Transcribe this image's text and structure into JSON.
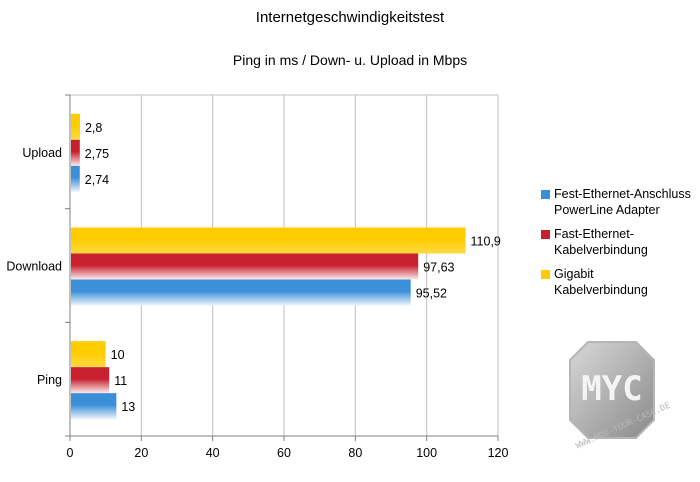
{
  "chart_data": {
    "type": "bar",
    "orientation": "horizontal",
    "title": "Internetgeschwindigkeitstest",
    "subtitle": "Ping in ms / Down- u. Upload in Mbps",
    "categories": [
      "Upload",
      "Download",
      "Ping"
    ],
    "series": [
      {
        "name": "Fest-Ethernet-Anschluss PowerLine Adapter",
        "color": "#3a8fd8",
        "values": [
          2.74,
          95.52,
          13
        ],
        "labels": [
          "2,74",
          "95,52",
          "13"
        ]
      },
      {
        "name": "Fast-Ethernet-Kabelverbindung",
        "color": "#c8202e",
        "values": [
          2.75,
          97.63,
          11
        ],
        "labels": [
          "2,75",
          "97,63",
          "11"
        ]
      },
      {
        "name": "Gigabit Kabelverbindung",
        "color": "#ffcc00",
        "values": [
          2.8,
          110.9,
          10
        ],
        "labels": [
          "2,8",
          "110,9",
          "10"
        ]
      }
    ],
    "xlim": [
      0,
      120
    ],
    "xticks": [
      "0",
      "20",
      "40",
      "60",
      "80",
      "100",
      "120"
    ],
    "grid": true,
    "legend_position": "right"
  },
  "legend": [
    [
      "Fest-Ethernet-Anschluss",
      "PowerLine Adapter"
    ],
    [
      "Fast-Ethernet-",
      "Kabelverbindung"
    ],
    [
      "Gigabit",
      "Kabelverbindung"
    ]
  ],
  "watermark": {
    "logo_text": "MYC",
    "site_text": "WWW.MOD-YOUR-CASE.DE"
  }
}
